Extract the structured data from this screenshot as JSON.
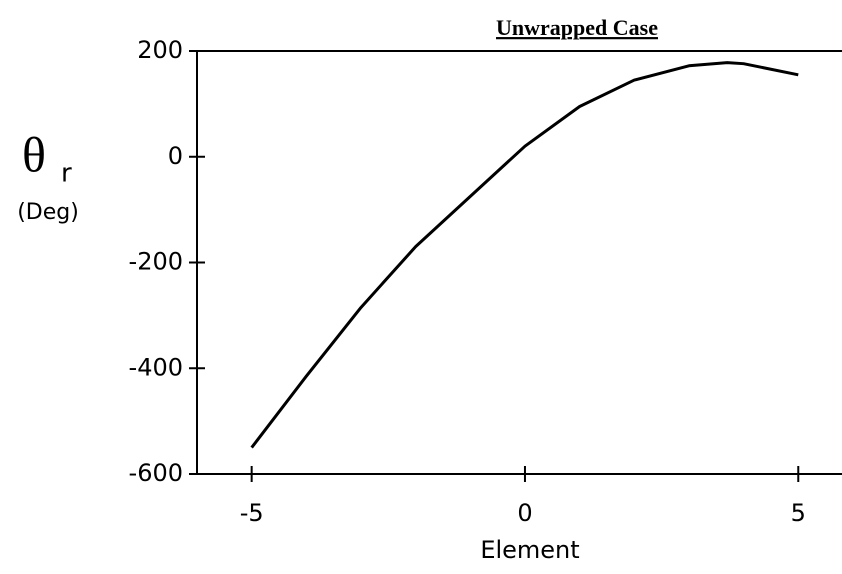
{
  "chart_data": {
    "type": "line",
    "title": "Unwrapped Case",
    "ylabel": {
      "symbol": "θ",
      "subscript": "r",
      "unit": "(Deg)"
    },
    "xlabel": "Element",
    "x": [
      -5,
      -4,
      -3,
      -2,
      -1,
      0,
      1,
      2,
      3,
      3.7,
      4,
      5
    ],
    "series": [
      {
        "name": "θr",
        "color": "#000000",
        "values": [
          -550,
          -415,
          -285,
          -170,
          -75,
          20,
          95,
          145,
          172,
          178,
          176,
          155
        ]
      }
    ],
    "xlim": [
      -6,
      5.8
    ],
    "xticks": [
      -5,
      0,
      5
    ],
    "ylim": [
      -600,
      200
    ],
    "yticks": [
      -600,
      -400,
      -200,
      0,
      200
    ]
  }
}
